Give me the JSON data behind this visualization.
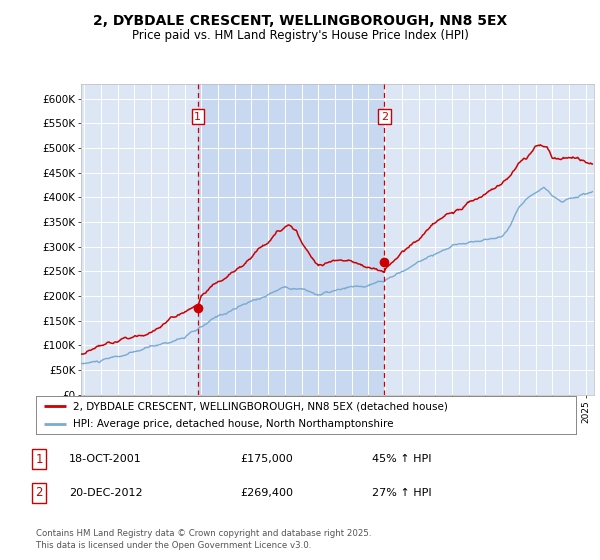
{
  "title": "2, DYBDALE CRESCENT, WELLINGBOROUGH, NN8 5EX",
  "subtitle": "Price paid vs. HM Land Registry's House Price Index (HPI)",
  "bg_color": "#dce6f5",
  "plot_bg_color": "#dce6f5",
  "red_line_color": "#cc0000",
  "blue_line_color": "#7aaad0",
  "dashed_color": "#cc0000",
  "shaded_color": "#c8d8f0",
  "ylabel_ticks": [
    "£0",
    "£50K",
    "£100K",
    "£150K",
    "£200K",
    "£250K",
    "£300K",
    "£350K",
    "£400K",
    "£450K",
    "£500K",
    "£550K",
    "£600K"
  ],
  "ytick_values": [
    0,
    50000,
    100000,
    150000,
    200000,
    250000,
    300000,
    350000,
    400000,
    450000,
    500000,
    550000,
    600000
  ],
  "ylim": [
    0,
    630000
  ],
  "xlim_start": 1994.8,
  "xlim_end": 2025.5,
  "purchase1_x": 2001.79,
  "purchase1_y": 175000,
  "purchase2_x": 2012.96,
  "purchase2_y": 269400,
  "legend_line1": "2, DYBDALE CRESCENT, WELLINGBOROUGH, NN8 5EX (detached house)",
  "legend_line2": "HPI: Average price, detached house, North Northamptonshire",
  "annotation1_date": "18-OCT-2001",
  "annotation1_price": "£175,000",
  "annotation1_hpi": "45% ↑ HPI",
  "annotation2_date": "20-DEC-2012",
  "annotation2_price": "£269,400",
  "annotation2_hpi": "27% ↑ HPI",
  "footer": "Contains HM Land Registry data © Crown copyright and database right 2025.\nThis data is licensed under the Open Government Licence v3.0."
}
